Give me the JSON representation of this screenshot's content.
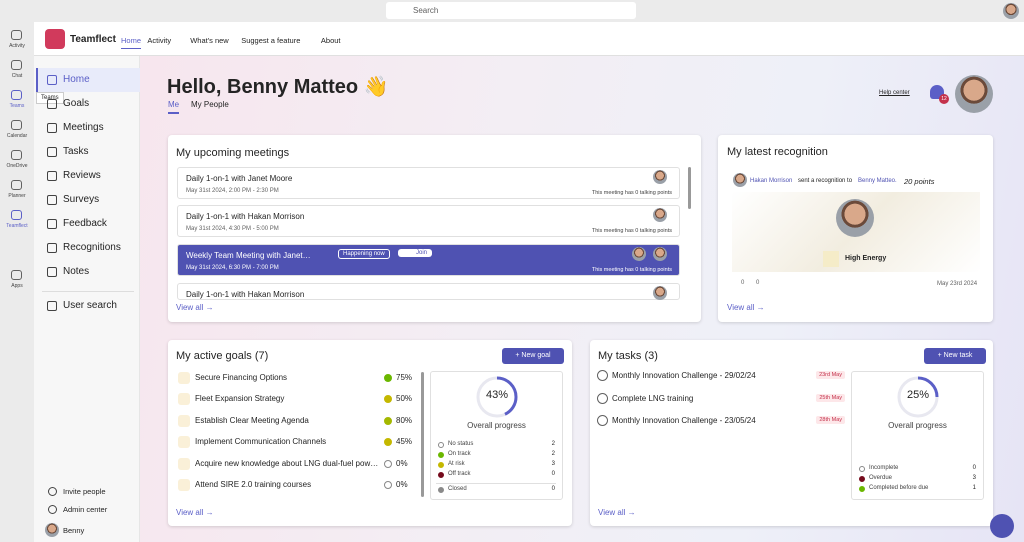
{
  "search": "Search",
  "rail": {
    "tooltip": "Teams",
    "items": [
      "Activity",
      "Chat",
      "Teams",
      "Calendar",
      "OneDrive",
      "Planner",
      "Teamflect",
      "Apps"
    ]
  },
  "header": {
    "app": "Teamflect",
    "tabs": [
      "Home",
      "Activity",
      "What's new",
      "Suggest a feature",
      "About"
    ]
  },
  "sidebar": {
    "nav": [
      "Home",
      "Goals",
      "Meetings",
      "Tasks",
      "Reviews",
      "Surveys",
      "Feedback",
      "Recognitions",
      "Notes",
      "User search"
    ],
    "footer": [
      "Invite people",
      "Admin center",
      "Benny"
    ]
  },
  "greeting": {
    "title": "Hello, Benny Matteo 👋",
    "tabs": [
      "Me",
      "My People"
    ],
    "help": "Help center",
    "badge": "12"
  },
  "meetings": {
    "title": "My upcoming meetings",
    "view_all": "View all →",
    "items": [
      {
        "title": "Daily 1-on-1 with Janet Moore",
        "time": "May 31st 2024, 2:00 PM - 2:30 PM",
        "note": "This meeting has 0 talking points"
      },
      {
        "title": "Daily 1-on-1 with Hakan Morrison",
        "time": "May 31st 2024, 4:30 PM - 5:00 PM",
        "note": "This meeting has 0 talking points"
      },
      {
        "title": "Weekly Team Meeting with Janet…",
        "time": "May 31st 2024, 6:30 PM - 7:00 PM",
        "note": "This meeting has 0 talking points",
        "status": "Happening now",
        "action": "Join"
      },
      {
        "title": "Daily 1-on-1 with Hakan Morrison"
      }
    ]
  },
  "recognition": {
    "title": "My latest recognition",
    "sender": "Hakan Morrison",
    "verb": "sent a recognition to",
    "recipient": "Benny Matteo.",
    "points": "20 points",
    "badge": "High Energy",
    "likes": 0,
    "comments": 0,
    "date": "May 23rd 2024",
    "view_all": "View all →"
  },
  "goals": {
    "title": "My active goals (7)",
    "button": "+ New goal",
    "view_all": "View all →",
    "items": [
      {
        "name": "Secure Financing Options",
        "percent": "75%",
        "color": "#6bb700"
      },
      {
        "name": "Fleet Expansion Strategy",
        "percent": "50%",
        "color": "#c4b800"
      },
      {
        "name": "Establish Clear Meeting Agenda",
        "percent": "80%",
        "color": "#a4b800"
      },
      {
        "name": "Implement Communication Channels",
        "percent": "45%",
        "color": "#c4b800"
      },
      {
        "name": "Acquire new knowledge about LNG dual-fuel pow…",
        "percent": "0%",
        "color": "none"
      },
      {
        "name": "Attend SIRE 2.0 training courses",
        "percent": "0%",
        "color": "none"
      }
    ],
    "progress": {
      "value": 43,
      "label": "43%"
    },
    "progress_title": "Overall progress",
    "stats": [
      {
        "name": "No status",
        "count": 2,
        "color": "#ffffff"
      },
      {
        "name": "On track",
        "count": 2,
        "color": "#6bb700"
      },
      {
        "name": "At risk",
        "count": 3,
        "color": "#c4b800"
      },
      {
        "name": "Off track",
        "count": 0,
        "color": "#750b1c"
      },
      {
        "name": "Closed",
        "count": 0,
        "color": "#8a8a8a"
      }
    ]
  },
  "tasks": {
    "title": "My tasks (3)",
    "button": "+ New task",
    "view_all": "View all →",
    "items": [
      {
        "name": "Monthly Innovation Challenge - 29/02/24",
        "due": "23rd May"
      },
      {
        "name": "Complete LNG training",
        "due": "25th May"
      },
      {
        "name": "Monthly Innovation Challenge - 23/05/24",
        "due": "28th May"
      }
    ],
    "progress": {
      "value": 25,
      "label": "25%"
    },
    "progress_title": "Overall progress",
    "stats": [
      {
        "name": "Incomplete",
        "count": 0,
        "color": "#ffffff"
      },
      {
        "name": "Overdue",
        "count": 3,
        "color": "#750b1c"
      },
      {
        "name": "Completed before due",
        "count": 1,
        "color": "#6bb700"
      }
    ]
  }
}
